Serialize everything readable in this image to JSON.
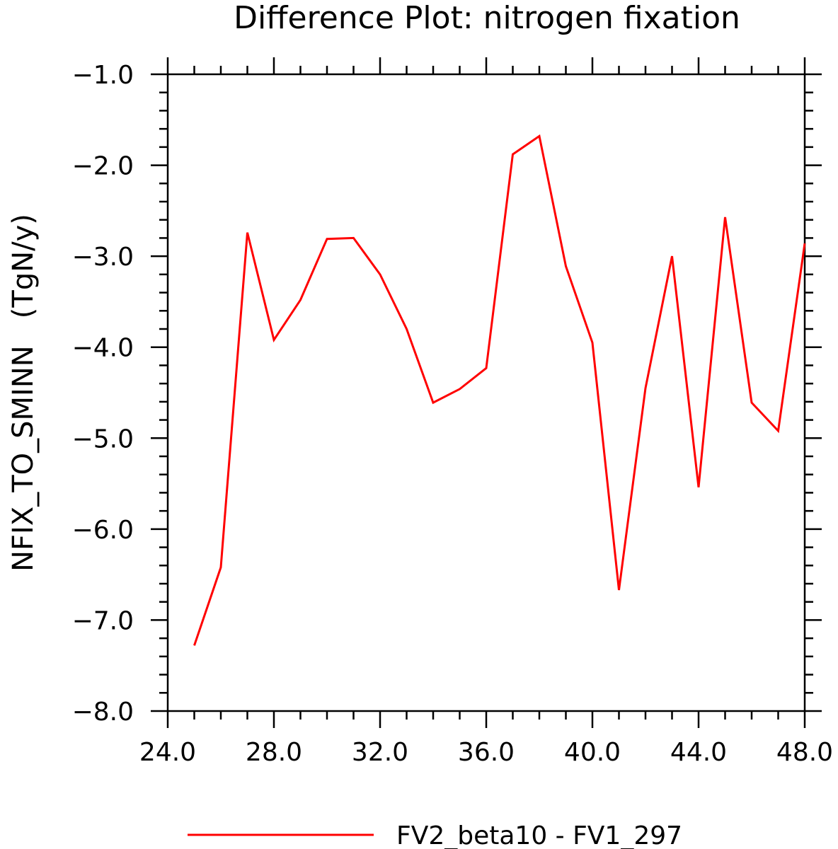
{
  "chart_data": {
    "type": "line",
    "title": "Difference Plot: nitrogen fixation",
    "xlabel": "",
    "ylabel": "NFIX_TO_SMINN   (TgN/y)",
    "xlim": [
      24,
      48
    ],
    "ylim": [
      -8,
      -1
    ],
    "xticks": [
      "24.0",
      "28.0",
      "32.0",
      "36.0",
      "40.0",
      "44.0",
      "48.0"
    ],
    "yticks": [
      "-1.0",
      "-2.0",
      "-3.0",
      "-4.0",
      "-5.0",
      "-6.0",
      "-7.0",
      "-8.0"
    ],
    "grid": false,
    "legend_position": "bottom",
    "series": [
      {
        "name": "FV2_beta10 - FV1_297",
        "color": "#ff0000",
        "x": [
          25,
          26,
          27,
          28,
          29,
          30,
          31,
          32,
          33,
          34,
          35,
          36,
          37,
          38,
          39,
          40,
          41,
          42,
          43,
          44,
          45,
          46,
          47,
          48
        ],
        "y": [
          -7.28,
          -6.42,
          -2.74,
          -3.92,
          -3.48,
          -2.81,
          -2.8,
          -3.2,
          -3.8,
          -4.61,
          -4.46,
          -4.23,
          -1.88,
          -1.68,
          -3.11,
          -3.95,
          -6.67,
          -4.45,
          -3.0,
          -5.54,
          -2.57,
          -4.61,
          -4.92,
          -2.86
        ]
      }
    ]
  }
}
